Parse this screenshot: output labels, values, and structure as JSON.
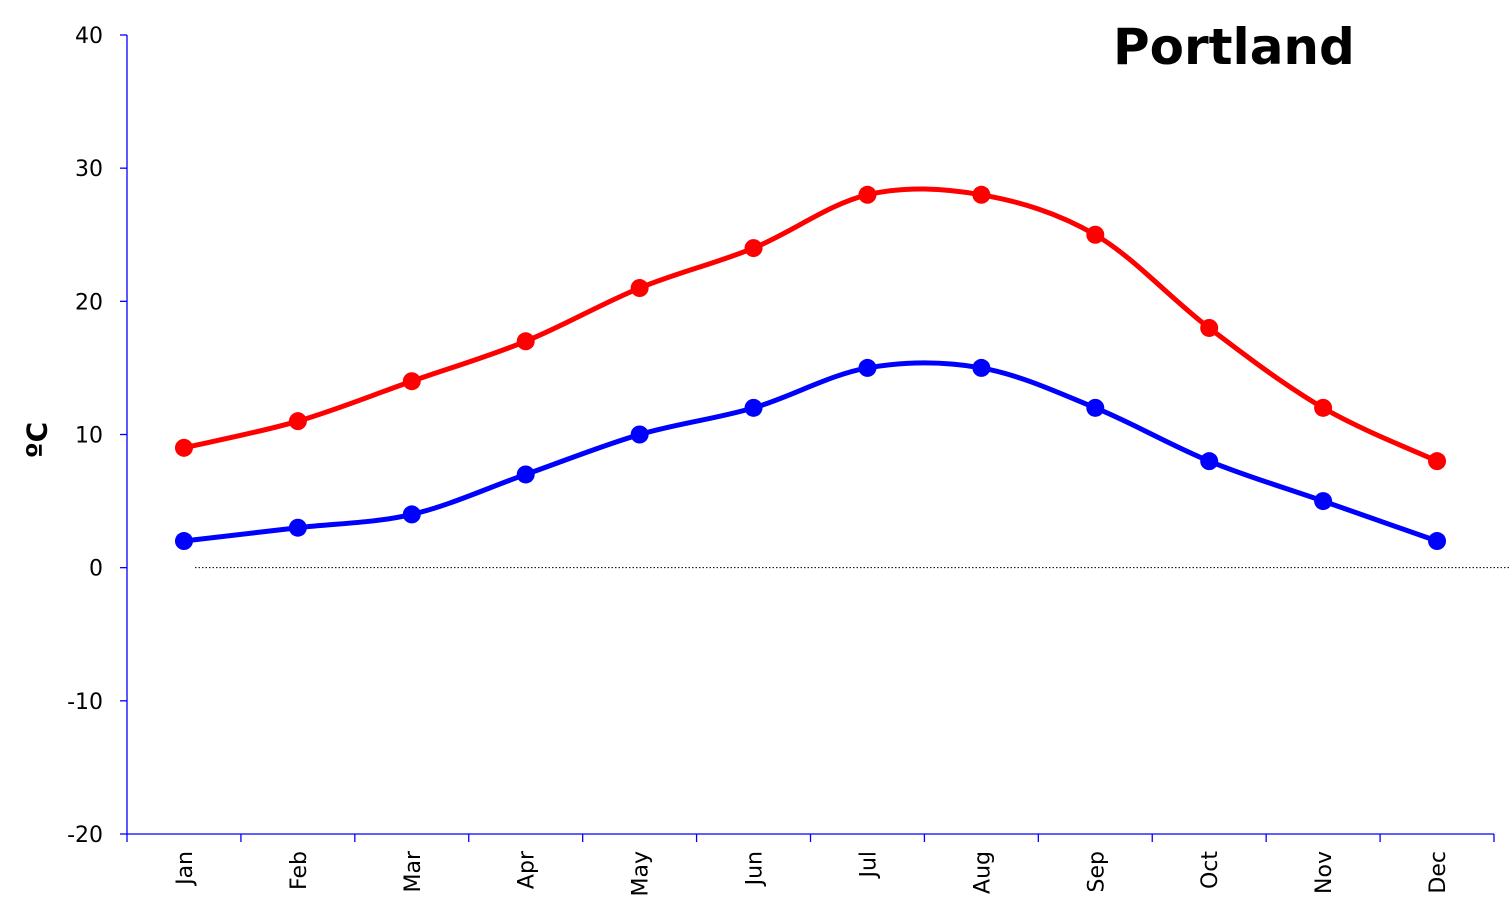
{
  "chart_data": {
    "type": "line",
    "title": "Portland",
    "xlabel": "",
    "ylabel": "ºC",
    "categories": [
      "Jan",
      "Feb",
      "Mar",
      "Apr",
      "May",
      "Jun",
      "Jul",
      "Aug",
      "Sep",
      "Oct",
      "Nov",
      "Dec"
    ],
    "series": [
      {
        "values": [
          9,
          11,
          14,
          17,
          21,
          24,
          28,
          28,
          25,
          18,
          12,
          8
        ],
        "color": "#ff0000"
      },
      {
        "values": [
          2,
          3,
          4,
          7,
          10,
          12,
          15,
          15,
          12,
          8,
          5,
          2
        ],
        "color": "#0000ff"
      }
    ],
    "ylim": [
      -20,
      40
    ],
    "yticks": [
      40,
      30,
      20,
      10,
      0,
      -10,
      -20
    ],
    "ytick_labels": [
      "40",
      "30",
      "20",
      "10",
      "0",
      "-10",
      "-20"
    ],
    "zero_line": "dotted",
    "grid": false,
    "smooth": true
  }
}
